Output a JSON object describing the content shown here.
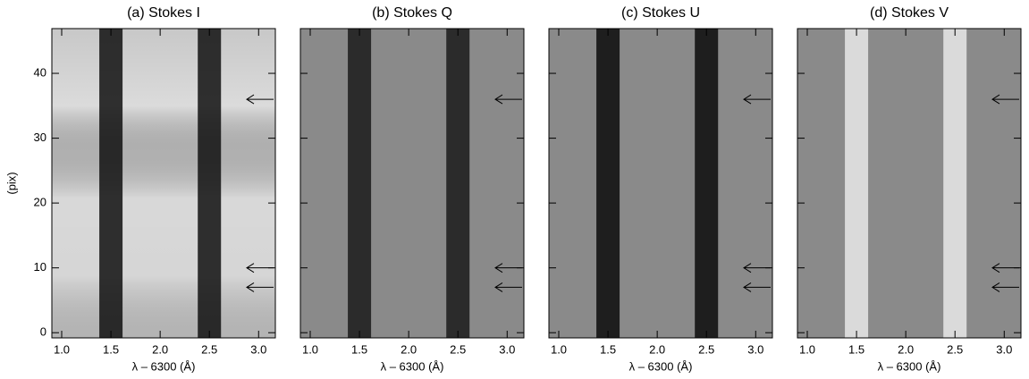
{
  "chart_data": [
    {
      "type": "heatmap",
      "title": "(a) Stokes I",
      "xlabel": "λ – 6300 (Å)",
      "ylabel": "(pix)",
      "xlim": [
        0.9,
        3.17
      ],
      "xticks": [
        {
          "value": 1,
          "label": "1.0"
        },
        {
          "value": 1.5,
          "label": "1.5"
        },
        {
          "value": 2,
          "label": "2.0"
        },
        {
          "value": 2.5,
          "label": "2.5"
        },
        {
          "value": 3,
          "label": "3.0"
        }
      ],
      "ylim": [
        -0.8,
        46.9
      ],
      "yticks": [
        0,
        10,
        20,
        30,
        40
      ],
      "line_centers": [
        1.5,
        2.5
      ],
      "arrow_rows": [
        36,
        10,
        7
      ],
      "background": "#c8c8c8",
      "line_color": "#111111"
    },
    {
      "type": "heatmap",
      "title": "(b) Stokes Q",
      "xlabel": "λ – 6300 (Å)",
      "xlim": [
        0.9,
        3.17
      ],
      "xticks": [
        {
          "value": 1,
          "label": "1.0"
        },
        {
          "value": 1.5,
          "label": "1.5"
        },
        {
          "value": 2,
          "label": "2.0"
        },
        {
          "value": 2.5,
          "label": "2.5"
        },
        {
          "value": 3,
          "label": "3.0"
        }
      ],
      "ylim": [
        -0.8,
        46.9
      ],
      "yticks": [
        0,
        10,
        20,
        30,
        40
      ],
      "line_centers": [
        1.5,
        2.5
      ],
      "arrow_rows": [
        36,
        10,
        7
      ],
      "background": "#8a8a8a",
      "line_color": "#1a1a1a"
    },
    {
      "type": "heatmap",
      "title": "(c) Stokes U",
      "xlabel": "λ – 6300 (Å)",
      "xlim": [
        0.9,
        3.17
      ],
      "xticks": [
        {
          "value": 1,
          "label": "1.0"
        },
        {
          "value": 1.5,
          "label": "1.5"
        },
        {
          "value": 2,
          "label": "2.0"
        },
        {
          "value": 2.5,
          "label": "2.5"
        },
        {
          "value": 3,
          "label": "3.0"
        }
      ],
      "ylim": [
        -0.8,
        46.9
      ],
      "yticks": [
        0,
        10,
        20,
        30,
        40
      ],
      "line_centers": [
        1.5,
        2.5
      ],
      "arrow_rows": [
        36,
        10,
        7
      ],
      "background": "#8a8a8a",
      "line_color": "#0a0a0a"
    },
    {
      "type": "heatmap",
      "title": "(d) Stokes V",
      "xlabel": "λ – 6300 (Å)",
      "xlim": [
        0.9,
        3.17
      ],
      "xticks": [
        {
          "value": 1,
          "label": "1.0"
        },
        {
          "value": 1.5,
          "label": "1.5"
        },
        {
          "value": 2,
          "label": "2.0"
        },
        {
          "value": 2.5,
          "label": "2.5"
        },
        {
          "value": 3,
          "label": "3.0"
        }
      ],
      "ylim": [
        -0.8,
        46.9
      ],
      "yticks": [
        0,
        10,
        20,
        30,
        40
      ],
      "line_centers": [
        1.5,
        2.5
      ],
      "arrow_rows": [
        36,
        10,
        7
      ],
      "background": "#8a8a8a",
      "line_color": "#e8e8e8"
    }
  ]
}
